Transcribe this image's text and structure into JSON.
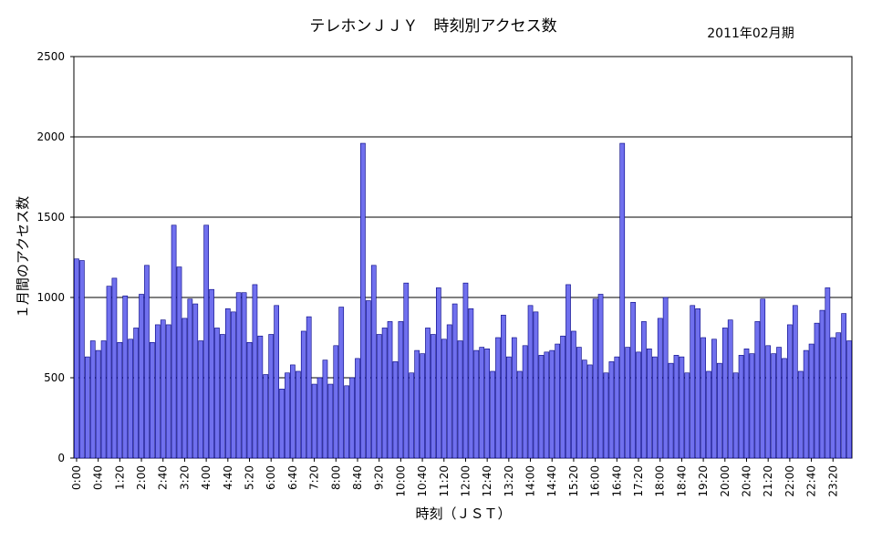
{
  "chart_data": {
    "type": "bar",
    "title": "テレホンＪＪＹ　時刻別アクセス数",
    "subtitle": "2011年02月期",
    "xlabel": "時刻（ＪＳＴ）",
    "ylabel": "１月間のアクセス数",
    "ylim": [
      0,
      2500
    ],
    "yticks": [
      0,
      500,
      1000,
      1500,
      2000,
      2500
    ],
    "grid": true,
    "legend": "none",
    "bar_color": "#7070ee",
    "bar_edge_color": "#000080",
    "categories": [
      "0:00",
      "0:10",
      "0:20",
      "0:30",
      "0:40",
      "0:50",
      "1:00",
      "1:10",
      "1:20",
      "1:30",
      "1:40",
      "1:50",
      "2:00",
      "2:10",
      "2:20",
      "2:30",
      "2:40",
      "2:50",
      "3:00",
      "3:10",
      "3:20",
      "3:30",
      "3:40",
      "3:50",
      "4:00",
      "4:10",
      "4:20",
      "4:30",
      "4:40",
      "4:50",
      "5:00",
      "5:10",
      "5:20",
      "5:30",
      "5:40",
      "5:50",
      "6:00",
      "6:10",
      "6:20",
      "6:30",
      "6:40",
      "6:50",
      "7:00",
      "7:10",
      "7:20",
      "7:30",
      "7:40",
      "7:50",
      "8:00",
      "8:10",
      "8:20",
      "8:30",
      "8:40",
      "8:50",
      "9:00",
      "9:10",
      "9:20",
      "9:30",
      "9:40",
      "9:50",
      "10:00",
      "10:10",
      "10:20",
      "10:30",
      "10:40",
      "10:50",
      "11:00",
      "11:10",
      "11:20",
      "11:30",
      "11:40",
      "11:50",
      "12:00",
      "12:10",
      "12:20",
      "12:30",
      "12:40",
      "12:50",
      "13:00",
      "13:10",
      "13:20",
      "13:30",
      "13:40",
      "13:50",
      "14:00",
      "14:10",
      "14:20",
      "14:30",
      "14:40",
      "14:50",
      "15:00",
      "15:10",
      "15:20",
      "15:30",
      "15:40",
      "15:50",
      "16:00",
      "16:10",
      "16:20",
      "16:30",
      "16:40",
      "16:50",
      "17:00",
      "17:10",
      "17:20",
      "17:30",
      "17:40",
      "17:50",
      "18:00",
      "18:10",
      "18:20",
      "18:30",
      "18:40",
      "18:50",
      "19:00",
      "19:10",
      "19:20",
      "19:30",
      "19:40",
      "19:50",
      "20:00",
      "20:10",
      "20:20",
      "20:30",
      "20:40",
      "20:50",
      "21:00",
      "21:10",
      "21:20",
      "21:30",
      "21:40",
      "21:50",
      "22:00",
      "22:10",
      "22:20",
      "22:30",
      "22:40",
      "22:50",
      "23:00",
      "23:10",
      "23:20",
      "23:30",
      "23:40",
      "23:50"
    ],
    "xtick_labels": [
      "0:00",
      "0:40",
      "1:20",
      "2:00",
      "2:40",
      "3:20",
      "4:00",
      "4:40",
      "5:20",
      "6:00",
      "6:40",
      "7:20",
      "8:00",
      "8:40",
      "9:20",
      "10:00",
      "10:40",
      "11:20",
      "12:00",
      "12:40",
      "13:20",
      "14:00",
      "14:40",
      "15:20",
      "16:00",
      "16:40",
      "17:20",
      "18:00",
      "18:40",
      "19:20",
      "20:00",
      "20:40",
      "21:20",
      "22:00",
      "22:40",
      "23:20"
    ],
    "values": [
      1240,
      1230,
      630,
      730,
      670,
      730,
      1070,
      1120,
      720,
      1010,
      740,
      810,
      1020,
      1200,
      720,
      830,
      860,
      830,
      1450,
      1190,
      870,
      990,
      960,
      730,
      1450,
      1050,
      810,
      770,
      930,
      910,
      1030,
      1030,
      720,
      1080,
      760,
      520,
      770,
      950,
      430,
      530,
      580,
      540,
      790,
      880,
      460,
      500,
      610,
      460,
      700,
      940,
      450,
      500,
      620,
      1960,
      980,
      1200,
      770,
      810,
      850,
      600,
      850,
      1090,
      530,
      670,
      650,
      810,
      770,
      1060,
      740,
      830,
      960,
      730,
      1090,
      930,
      670,
      690,
      680,
      540,
      750,
      890,
      630,
      750,
      540,
      700,
      950,
      910,
      640,
      660,
      670,
      710,
      760,
      1080,
      790,
      690,
      610,
      580,
      990,
      1020,
      530,
      600,
      630,
      1960,
      690,
      970,
      660,
      850,
      680,
      630,
      870,
      1000,
      590,
      640,
      630,
      530,
      950,
      930,
      750,
      540,
      740,
      590,
      810,
      860,
      530,
      640,
      680,
      650,
      850,
      990,
      700,
      650,
      690,
      620,
      830,
      950,
      540,
      670,
      710,
      840,
      920,
      1060,
      750,
      780,
      900,
      730
    ]
  }
}
